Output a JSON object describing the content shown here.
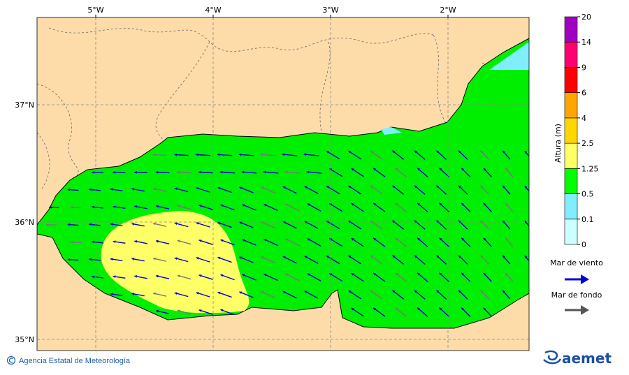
{
  "map": {
    "x_labels": [
      "5°W",
      "4°W",
      "3°W",
      "2°W"
    ],
    "y_labels": [
      "37°N",
      "36°N",
      "35°N"
    ]
  },
  "colorbar": {
    "title": "Altura (m)",
    "labels": [
      "0",
      "0.1",
      "0.5",
      "1.25",
      "2.5",
      "4",
      "6",
      "9",
      "14",
      "20"
    ],
    "colors": [
      "#ccffff",
      "#80eeff",
      "#00ff00",
      "#ffff66",
      "#ffd700",
      "#ffa500",
      "#ff0000",
      "#ff0070",
      "#a000c0"
    ]
  },
  "legend": {
    "wind": "Mar de viento",
    "swell": "Mar de fondo"
  },
  "footer": {
    "credit": "Agencia Estatal de Meteorología",
    "logo": "aemet"
  }
}
